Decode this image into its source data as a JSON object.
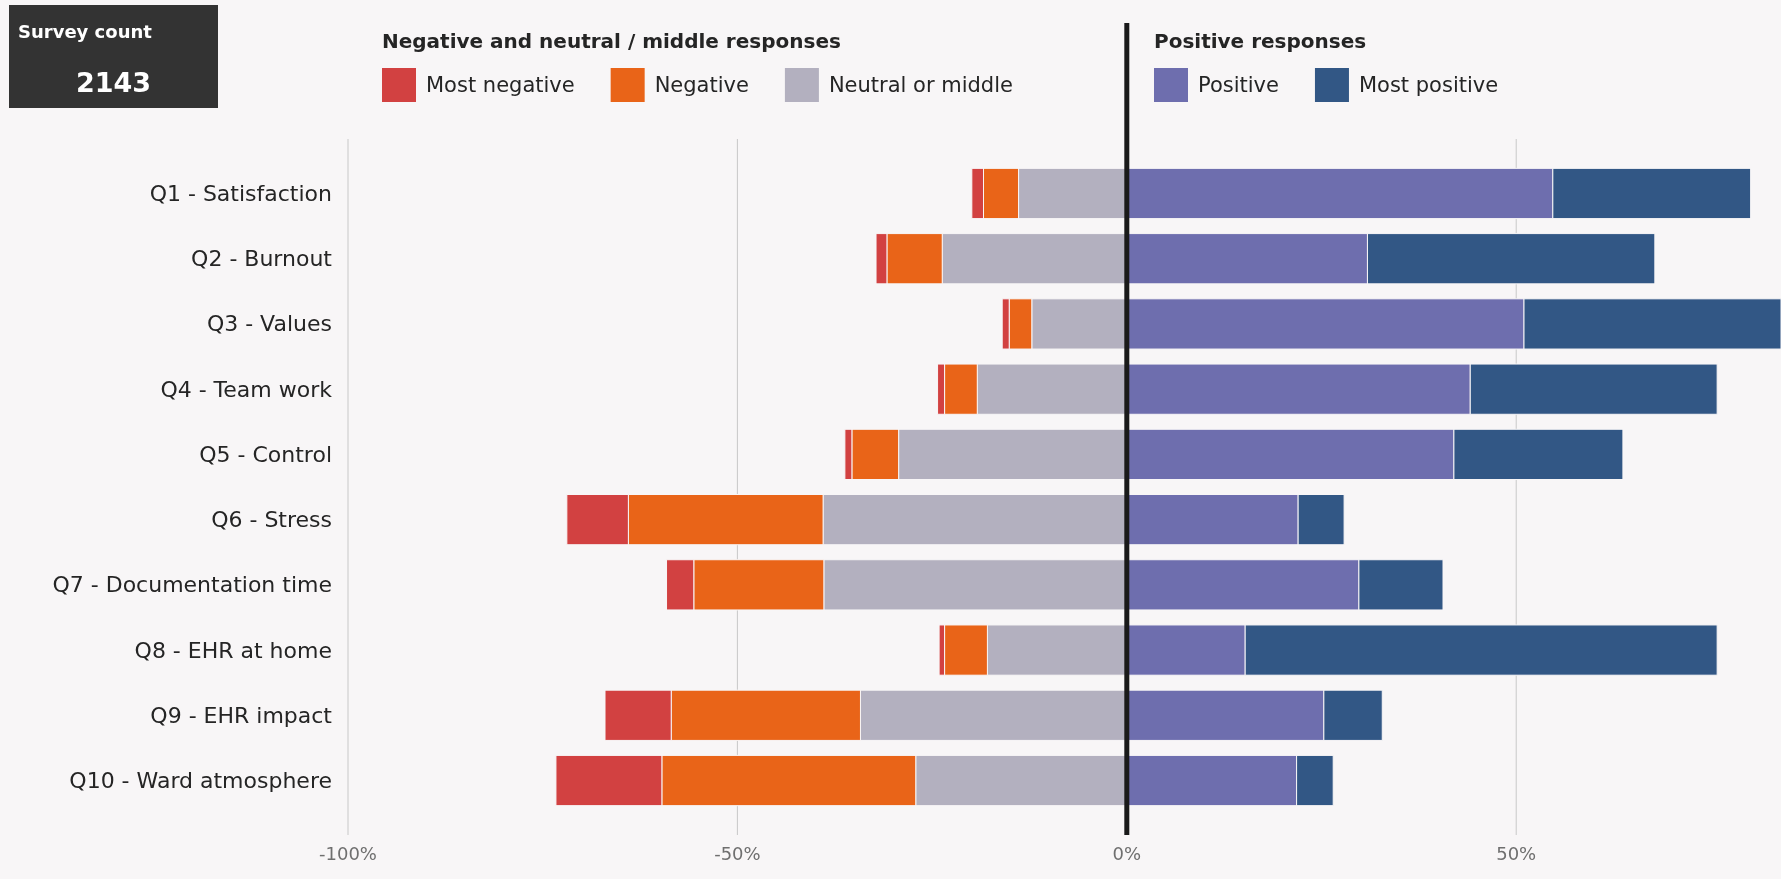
{
  "chart_data": [
    {
      "type": "other",
      "title": "Survey count",
      "annotations": [
        "2143"
      ]
    },
    {
      "type": "bar",
      "orientation": "horizontal",
      "stacked": true,
      "categories": [
        "Q1 - Satisfaction",
        "Q2 - Burnout",
        "Q3 - Values",
        "Q4 - Team work",
        "Q5 - Control",
        "Q6 - Stress",
        "Q7 - Documentation time",
        "Q8 - EHR at home",
        "Q9 - EHR impact",
        "Q10 - Ward atmosphere"
      ],
      "series": [
        {
          "name": "Neutral or middle",
          "color": "#b3b0bf",
          "values": [
            -13.9,
            -23.7,
            -12.2,
            -19.2,
            -29.3,
            -39.0,
            -38.9,
            -17.9,
            -34.2,
            -27.1
          ]
        },
        {
          "name": "Negative",
          "color": "#e96418",
          "values": [
            -4.5,
            -7.1,
            -2.9,
            -4.2,
            -6.0,
            -25.0,
            -16.7,
            -5.5,
            -24.3,
            -32.6
          ]
        },
        {
          "name": "Most negative",
          "color": "#d24141",
          "values": [
            -1.5,
            -1.4,
            -0.9,
            -0.9,
            -0.9,
            -7.9,
            -3.5,
            -0.7,
            -8.5,
            -13.6
          ]
        },
        {
          "name": "Positive",
          "color": "#6e6eae",
          "values": [
            54.7,
            30.9,
            51.0,
            44.1,
            42.0,
            22.0,
            29.8,
            15.2,
            25.3,
            21.8
          ]
        },
        {
          "name": "Most positive",
          "color": "#325785",
          "values": [
            25.4,
            36.9,
            33.0,
            31.7,
            21.7,
            5.9,
            10.8,
            60.6,
            7.5,
            4.7
          ]
        }
      ],
      "xlim": [
        -100,
        84
      ],
      "xticks": [
        {
          "value": -100,
          "label": "-100%"
        },
        {
          "value": -50,
          "label": "-50%"
        },
        {
          "value": 0,
          "label": "0%"
        },
        {
          "value": 50,
          "label": "50%"
        }
      ],
      "grid": "x",
      "legend": "top",
      "ref_lines": [
        {
          "axis": "x",
          "value": 0,
          "color": "#1a1a1a"
        }
      ],
      "annotations": [
        "Negative and neutral / middle responses",
        "Positive responses"
      ]
    }
  ]
}
